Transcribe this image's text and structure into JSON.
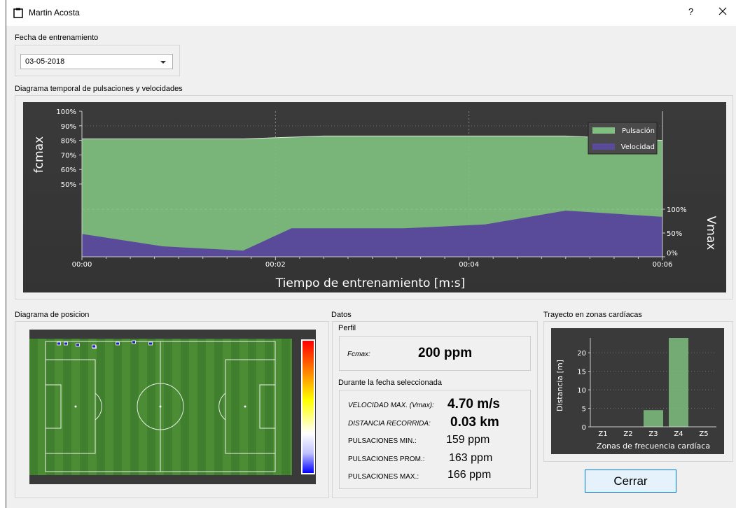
{
  "window": {
    "title": "Martin Acosta",
    "help_label": "?"
  },
  "fecha": {
    "label": "Fecha de entrenamiento",
    "selected": "03-05-2018"
  },
  "timeline": {
    "section_label": "Diagrama temporal de pulsaciones y velocidades",
    "colors": {
      "bg": "#3c3c3c",
      "pulsacion": "#7fbf7f",
      "velocidad": "#5a4a9a"
    },
    "chart_data": {
      "type": "area",
      "xlabel": "Tiempo de entrenamiento [m:s]",
      "ylabel_left": "fcmax",
      "ylabel_right": "Vmax",
      "x_ticks": [
        "00:00",
        "00:02",
        "00:04",
        "00:06"
      ],
      "x_range_s": [
        0,
        360
      ],
      "y_left_ticks": [
        "100%",
        "90%",
        "80%",
        "70%",
        "60%",
        "50%"
      ],
      "y_left_range_pct": [
        0,
        100
      ],
      "y_right_ticks": [
        "100%",
        "50%",
        "0%"
      ],
      "y_right_range_pct": [
        0,
        100
      ],
      "grid": true,
      "legend": "top-right",
      "series": [
        {
          "name": "Pulsación",
          "axis": "left",
          "x_s": [
            0,
            50,
            100,
            150,
            200,
            250,
            300,
            360
          ],
          "values": [
            81,
            81,
            81,
            83,
            83,
            83,
            83,
            80
          ]
        },
        {
          "name": "Velocidad",
          "axis": "right",
          "x_s": [
            0,
            50,
            100,
            130,
            200,
            250,
            300,
            360
          ],
          "values": [
            48,
            22,
            13,
            60,
            60,
            68,
            97,
            84
          ]
        }
      ]
    }
  },
  "posicion": {
    "section_label": "Diagrama de posicion",
    "colors": {
      "grass_dark": "#3e7d2c",
      "grass_light": "#4f9236",
      "marker": "#1f1fbf"
    },
    "marker_count": 8
  },
  "datos": {
    "section_label": "Datos",
    "perfil_label": "Perfil",
    "fcmax_key": "Fcmax:",
    "fcmax_value": "200 ppm",
    "periodo_label": "Durante la fecha seleccionada",
    "stats": [
      {
        "key": "VELOCIDAD MAX. (Vmax):",
        "value": "4.70 m/s"
      },
      {
        "key": "DISTANCIA RECORRIDA:",
        "value": "0.03 km"
      },
      {
        "key": "PULSACIONES MIN.:",
        "value": "159 ppm"
      },
      {
        "key": "PULSACIONES PROM.:",
        "value": "163 ppm"
      },
      {
        "key": "PULSACIONES MAX.:",
        "value": "166 ppm"
      }
    ]
  },
  "zonas": {
    "section_label": "Trayecto en zonas cardíacas",
    "chart_data": {
      "type": "bar",
      "categories": [
        "Z1",
        "Z2",
        "Z3",
        "Z4",
        "Z5"
      ],
      "values": [
        0,
        0,
        4.5,
        24,
        0
      ],
      "xlabel": "Zonas de frecuencia cardíaca",
      "ylabel": "Distancia [m]",
      "y_ticks": [
        "0",
        "5",
        "10",
        "15",
        "20"
      ],
      "ylim": [
        0,
        24
      ],
      "grid": true
    }
  },
  "footer": {
    "close_label": "Cerrar"
  }
}
